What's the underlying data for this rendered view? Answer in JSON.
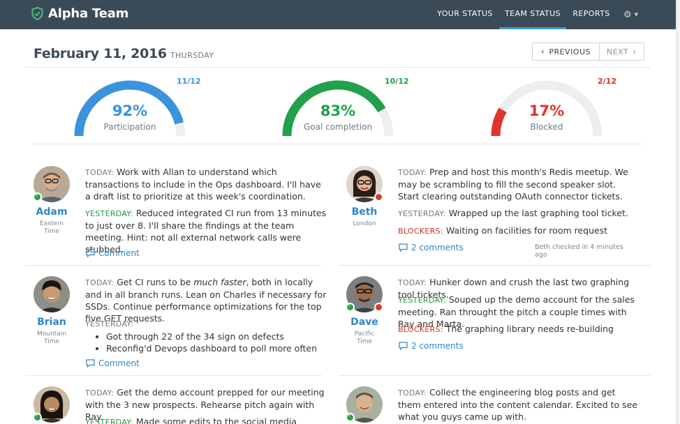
{
  "app": {
    "title": "Alpha Team"
  },
  "nav": {
    "items": [
      {
        "label": "YOUR STATUS",
        "active": false
      },
      {
        "label": "TEAM STATUS",
        "active": true
      },
      {
        "label": "REPORTS",
        "active": false
      }
    ],
    "settings_icon": "gear-icon"
  },
  "header": {
    "date": "February 11, 2016",
    "day": "THURSDAY",
    "prev_label": "PREVIOUS",
    "next_label": "NEXT"
  },
  "gauges": [
    {
      "percent": "92%",
      "label": "Participation",
      "count": "11/12",
      "fraction": 0.92,
      "color": "#3a93dc"
    },
    {
      "percent": "83%",
      "label": "Goal completion",
      "count": "10/12",
      "fraction": 0.83,
      "color": "#22a04b"
    },
    {
      "percent": "17%",
      "label": "Blocked",
      "count": "2/12",
      "fraction": 0.17,
      "color": "#e0342a"
    }
  ],
  "labels": {
    "today": "TODAY:",
    "yesterday": "YESTERDAY:",
    "blockers": "BLOCKERS:",
    "comment": "Comment"
  },
  "people": [
    {
      "name": "Adam",
      "timezone": "Eastern Time",
      "today": "Work with Allan to understand which transactions to include in the Ops dashboard. I'll have a draft list to prioritize at this week's coordination.",
      "yesterday": "Reduced integrated CI run from 13 minutes to just over 8. I'll share the findings at the team meeting. Hint: not all external network calls were stubbed.",
      "comment_link": "Comment"
    },
    {
      "name": "Beth",
      "timezone": "London",
      "today": "Prep and host this month's Redis meetup. We may be scrambling to fill the second speaker slot. Start clearing outstanding OAuth connector tickets.",
      "yesterday": "Wrapped up the last graphing tool ticket.",
      "blockers": "Waiting on facilities for room request",
      "comment_link": "2 comments",
      "checked_in": "Beth checked in 4 minutes ago"
    },
    {
      "name": "Brian",
      "timezone": "Mountain Time",
      "today_pre": "Get CI runs to be ",
      "today_em": "much faster",
      "today_post": ", both in locally and in all branch runs. Lean on Charles if necessary for SSDs. Continue performance optimizations for the top five GET requests.",
      "yesterday_items": [
        "Got through 22 of the 34 sign on defects",
        "Reconfig'd Devops dashboard to poll more often"
      ],
      "comment_link": "Comment"
    },
    {
      "name": "Dave",
      "timezone": "Pacific Time",
      "today": "Hunker down and crush the last two graphing tool tickets.",
      "yesterday": "Souped up the demo account for the sales meeting. Ran throught the pitch a couple times with Ray and Marta.",
      "blockers": "The graphing library needs re-building",
      "comment_link": "2 comments"
    },
    {
      "today": "Get the demo account prepped for our meeting with the 3 new prospects. Rehearse pitch again with Ray.",
      "yesterday": "Made some edits to the social media calender and"
    },
    {
      "today": "Collect the engineering blog posts and get them entered into the content calendar. Excited to see what you guys came up with."
    }
  ]
}
